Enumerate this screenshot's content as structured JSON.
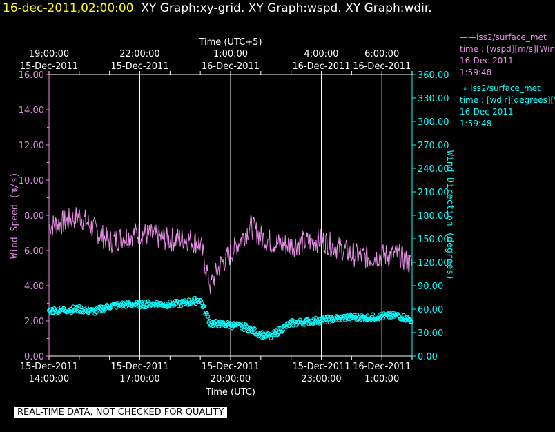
{
  "header": {
    "timestamp": "16-dec-2011,02:00:00",
    "graphs": "XY Graph:xy-grid.  XY Graph:wspd.  XY Graph:wdir."
  },
  "legend": {
    "wspd": {
      "symbol": "——",
      "name": "iss2/surface_met",
      "var": "time : [wspd][m/s][Wind",
      "date": "16-Dec-2011",
      "time": "1:59:48",
      "color": "#e68ee6"
    },
    "wdir": {
      "symbol": "∘",
      "name": "iss2/surface_met",
      "var": "time : [wdir][degrees][V",
      "date": "16-Dec-2011",
      "time": "1:59:48",
      "color": "#00ffff"
    }
  },
  "note": "REAL-TIME DATA, NOT CHECKED FOR QUALITY",
  "chart_data": {
    "type": "line",
    "title": "",
    "xlabel_bottom": "Time (UTC)",
    "xlabel_top": "Time (UTC+5)",
    "ylabel_left": "Wind Speed (m/s)",
    "ylabel_right": "Wind Direction (degrees)",
    "x_range_hours_utc": [
      "15-Dec-2011 14:00:00",
      "16-Dec-2011 02:00:00"
    ],
    "ylim_left": [
      0,
      16
    ],
    "ylim_right": [
      0,
      360
    ],
    "grid": "vertical lines at labeled times",
    "bottom_ticks": [
      {
        "time": "2011-12-15T14:00",
        "date": "15-Dec-2011",
        "clock": "14:00:00"
      },
      {
        "time": "2011-12-15T17:00",
        "date": "15-Dec-2011",
        "clock": "17:00:00"
      },
      {
        "time": "2011-12-15T20:00",
        "date": "15-Dec-2011",
        "clock": "20:00:00"
      },
      {
        "time": "2011-12-15T23:00",
        "date": "15-Dec-2011",
        "clock": "23:00:00"
      },
      {
        "time": "2011-12-16T01:00",
        "date": "16-Dec-2011",
        "clock": "1:00:00"
      }
    ],
    "top_ticks": [
      {
        "time": "2011-12-15T14:00",
        "clock": "19:00:00",
        "date": "15-Dec-2011"
      },
      {
        "time": "2011-12-15T17:00",
        "clock": "22:00:00",
        "date": "15-Dec-2011"
      },
      {
        "time": "2011-12-15T20:00",
        "clock": "1:00:00",
        "date": "16-Dec-2011"
      },
      {
        "time": "2011-12-15T23:00",
        "clock": "4:00:00",
        "date": "16-Dec-2011"
      },
      {
        "time": "2011-12-16T01:00",
        "clock": "6:00:00",
        "date": "16-Dec-2011"
      }
    ],
    "left_ticks": [
      "0.00",
      "2.00",
      "4.00",
      "6.00",
      "8.00",
      "10.00",
      "12.00",
      "14.00",
      "16.00"
    ],
    "right_ticks": [
      "0.00",
      "30.00",
      "60.00",
      "90.00",
      "120.00",
      "150.00",
      "180.00",
      "210.00",
      "240.00",
      "270.00",
      "300.00",
      "330.00",
      "360.00"
    ],
    "series": [
      {
        "name": "iss2/surface_met wspd",
        "axis": "left",
        "style": "line",
        "color": "#e68ee6",
        "x": [
          "2011-12-15T14:00",
          "2011-12-15T14:30",
          "2011-12-15T15:00",
          "2011-12-15T15:30",
          "2011-12-15T16:00",
          "2011-12-15T16:30",
          "2011-12-15T17:00",
          "2011-12-15T17:30",
          "2011-12-15T18:00",
          "2011-12-15T18:30",
          "2011-12-15T19:00",
          "2011-12-15T19:20",
          "2011-12-15T19:40",
          "2011-12-15T20:00",
          "2011-12-15T20:30",
          "2011-12-15T20:40",
          "2011-12-15T21:00",
          "2011-12-15T21:30",
          "2011-12-15T22:00",
          "2011-12-15T22:30",
          "2011-12-15T23:00",
          "2011-12-15T23:30",
          "2011-12-16T00:00",
          "2011-12-16T00:30",
          "2011-12-16T01:00",
          "2011-12-16T01:30",
          "2011-12-16T01:59"
        ],
        "y": [
          7.4,
          7.6,
          8.0,
          7.2,
          6.5,
          6.8,
          7.0,
          6.8,
          6.6,
          6.7,
          6.4,
          4.0,
          5.2,
          5.8,
          7.0,
          7.4,
          6.8,
          6.4,
          6.3,
          6.5,
          6.6,
          6.2,
          5.8,
          5.6,
          5.7,
          5.8,
          5.2
        ]
      },
      {
        "name": "iss2/surface_met wdir",
        "axis": "right",
        "style": "marker",
        "color": "#00ffff",
        "x": [
          "2011-12-15T14:00",
          "2011-12-15T14:30",
          "2011-12-15T15:00",
          "2011-12-15T15:30",
          "2011-12-15T16:00",
          "2011-12-15T16:30",
          "2011-12-15T17:00",
          "2011-12-15T17:30",
          "2011-12-15T18:00",
          "2011-12-15T18:30",
          "2011-12-15T19:00",
          "2011-12-15T19:20",
          "2011-12-15T19:40",
          "2011-12-15T20:00",
          "2011-12-15T20:30",
          "2011-12-15T21:00",
          "2011-12-15T21:20",
          "2011-12-15T21:40",
          "2011-12-15T22:00",
          "2011-12-15T22:30",
          "2011-12-15T23:00",
          "2011-12-15T23:30",
          "2011-12-16T00:00",
          "2011-12-16T00:30",
          "2011-12-16T01:00",
          "2011-12-16T01:30",
          "2011-12-16T01:59"
        ],
        "y": [
          58,
          59,
          60,
          57,
          64,
          66,
          66,
          67,
          66,
          68,
          72,
          42,
          41,
          40,
          37,
          28,
          25,
          34,
          42,
          44,
          46,
          48,
          50,
          49,
          51,
          52,
          46
        ]
      }
    ]
  }
}
